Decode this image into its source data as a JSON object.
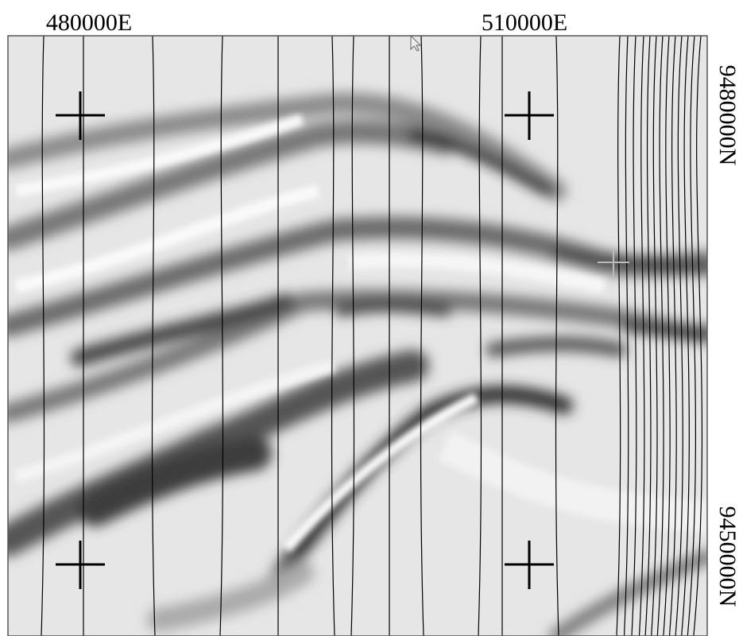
{
  "map": {
    "easting_labels": [
      "480000E",
      "510000E"
    ],
    "northing_labels": [
      "9480000N",
      "9450000N"
    ]
  }
}
